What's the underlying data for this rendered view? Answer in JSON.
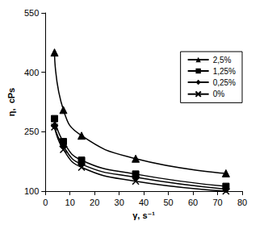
{
  "chart_data": {
    "type": "line",
    "x_label": "γ, s⁻¹",
    "y_label": "η,  cPs",
    "xlim": [
      0,
      80
    ],
    "xticks": [
      0,
      10,
      20,
      30,
      40,
      50,
      60,
      70,
      80
    ],
    "ylim": [
      100,
      550
    ],
    "yticks": [
      100,
      250,
      400,
      550
    ],
    "grid": false,
    "legend": "upper right",
    "series": [
      {
        "name": "2,5%",
        "color": "#000000",
        "marker": "triangle",
        "line_style": "smooth",
        "x": [
          3.7,
          7.3,
          14.7,
          36.7,
          73.4
        ],
        "values": [
          450,
          305,
          240,
          182,
          145
        ]
      },
      {
        "name": "1,25%",
        "color": "#000000",
        "marker": "square",
        "line_style": "smooth",
        "x": [
          3.7,
          7.3,
          14.7,
          36.7,
          73.4
        ],
        "values": [
          283,
          225,
          178,
          143,
          112
        ]
      },
      {
        "name": "0,25%",
        "color": "#000000",
        "marker": "diamond",
        "line_style": "smooth",
        "x": [
          3.7,
          7.3,
          14.7,
          36.7,
          73.4
        ],
        "values": [
          265,
          213,
          168,
          135,
          105
        ]
      },
      {
        "name": "0%",
        "color": "#000000",
        "marker": "cross",
        "line_style": "smooth",
        "x": [
          3.7,
          7.3,
          14.7,
          36.7,
          73.4
        ],
        "values": [
          262,
          205,
          160,
          125,
          100
        ]
      }
    ]
  }
}
